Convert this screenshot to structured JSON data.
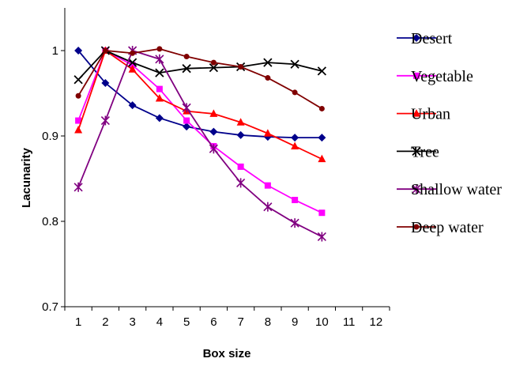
{
  "chart_data": {
    "type": "line",
    "xlabel": "Box size",
    "ylabel": "Lacunarity",
    "xlim": [
      0.5,
      12.5
    ],
    "ylim": [
      0.7,
      1.05
    ],
    "x_ticks": [
      1,
      2,
      3,
      4,
      5,
      6,
      7,
      8,
      9,
      10,
      11,
      12
    ],
    "y_ticks": [
      0.7,
      0.8,
      0.9,
      1.0
    ],
    "y_tick_labels": [
      "0.7",
      "0.8",
      "0.9",
      "1"
    ],
    "grid": false,
    "legend_position": "right",
    "x": [
      1,
      2,
      3,
      4,
      5,
      6,
      7,
      8,
      9,
      10
    ],
    "series": [
      {
        "name": "Desert",
        "color": "#00008b",
        "marker": "diamond",
        "values": [
          1.0,
          0.962,
          0.936,
          0.921,
          0.911,
          0.905,
          0.901,
          0.899,
          0.898,
          0.898
        ]
      },
      {
        "name": "Vegetable",
        "color": "#ff00ff",
        "marker": "square",
        "values": [
          0.918,
          1.0,
          0.983,
          0.955,
          0.918,
          0.888,
          0.864,
          0.842,
          0.825,
          0.81
        ]
      },
      {
        "name": "Urban",
        "color": "#ff0000",
        "marker": "triangle",
        "values": [
          0.907,
          1.0,
          0.978,
          0.944,
          0.929,
          0.926,
          0.916,
          0.903,
          0.888,
          0.873
        ]
      },
      {
        "name": "Tree",
        "color": "#000000",
        "marker": "x",
        "values": [
          0.966,
          1.0,
          0.986,
          0.974,
          0.979,
          0.98,
          0.981,
          0.986,
          0.984,
          0.976
        ]
      },
      {
        "name": "Shallow water",
        "color": "#800080",
        "marker": "star",
        "values": [
          0.84,
          0.918,
          1.0,
          0.99,
          0.933,
          0.885,
          0.845,
          0.817,
          0.798,
          0.782
        ]
      },
      {
        "name": "Deep water",
        "color": "#800000",
        "marker": "circle",
        "values": [
          0.947,
          1.0,
          0.997,
          1.002,
          0.993,
          0.986,
          0.981,
          0.968,
          0.951,
          0.932
        ]
      }
    ]
  }
}
